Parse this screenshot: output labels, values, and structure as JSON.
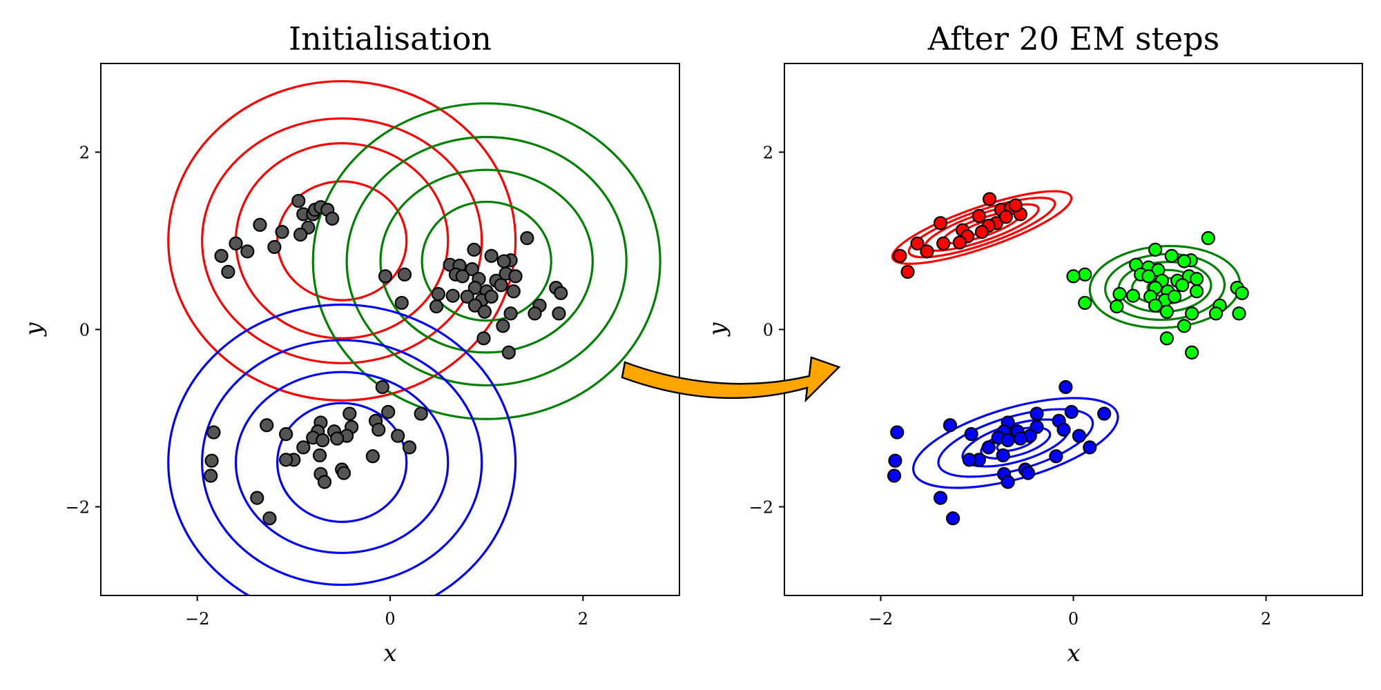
{
  "chart_data": [
    {
      "type": "scatter",
      "title": "Initialisation",
      "xlabel": "x",
      "ylabel": "y",
      "xlim": [
        -3,
        3
      ],
      "ylim": [
        -3,
        3
      ],
      "xticks": [
        "−2",
        "0",
        "2"
      ],
      "yticks": [
        "−2",
        "0",
        "2"
      ],
      "point_color": "#555555",
      "points": [
        [
          -0.95,
          1.45
        ],
        [
          -0.9,
          1.3
        ],
        [
          -0.85,
          1.15
        ],
        [
          -0.8,
          1.3
        ],
        [
          -0.78,
          1.35
        ],
        [
          -0.72,
          1.38
        ],
        [
          -0.65,
          1.35
        ],
        [
          -0.6,
          1.25
        ],
        [
          -0.93,
          1.07
        ],
        [
          -1.35,
          1.18
        ],
        [
          -1.12,
          1.1
        ],
        [
          -1.2,
          0.93
        ],
        [
          -1.6,
          0.97
        ],
        [
          -1.48,
          0.88
        ],
        [
          -1.75,
          0.83
        ],
        [
          -1.68,
          0.65
        ],
        [
          1.42,
          1.03
        ],
        [
          0.87,
          0.9
        ],
        [
          1.05,
          0.83
        ],
        [
          1.25,
          0.78
        ],
        [
          0.62,
          0.73
        ],
        [
          0.72,
          0.72
        ],
        [
          0.85,
          0.68
        ],
        [
          1.18,
          0.77
        ],
        [
          0.68,
          0.62
        ],
        [
          0.15,
          0.62
        ],
        [
          -0.05,
          0.6
        ],
        [
          0.75,
          0.6
        ],
        [
          0.92,
          0.57
        ],
        [
          1.1,
          0.55
        ],
        [
          1.2,
          0.63
        ],
        [
          1.3,
          0.6
        ],
        [
          0.88,
          0.47
        ],
        [
          1.0,
          0.43
        ],
        [
          1.15,
          0.5
        ],
        [
          1.28,
          0.43
        ],
        [
          1.72,
          0.47
        ],
        [
          1.77,
          0.41
        ],
        [
          0.5,
          0.4
        ],
        [
          0.65,
          0.38
        ],
        [
          0.8,
          0.37
        ],
        [
          0.95,
          0.33
        ],
        [
          1.05,
          0.37
        ],
        [
          0.12,
          0.3
        ],
        [
          0.48,
          0.26
        ],
        [
          0.88,
          0.27
        ],
        [
          0.98,
          0.2
        ],
        [
          1.25,
          0.18
        ],
        [
          1.55,
          0.27
        ],
        [
          1.75,
          0.18
        ],
        [
          1.5,
          0.18
        ],
        [
          1.17,
          0.04
        ],
        [
          0.97,
          -0.1
        ],
        [
          1.23,
          -0.26
        ],
        [
          -0.08,
          -0.65
        ],
        [
          -0.02,
          -0.93
        ],
        [
          0.32,
          -0.95
        ],
        [
          -0.42,
          -0.95
        ],
        [
          -0.15,
          -1.03
        ],
        [
          -0.12,
          -1.13
        ],
        [
          -0.4,
          -1.1
        ],
        [
          -0.45,
          -1.2
        ],
        [
          -0.58,
          -1.15
        ],
        [
          -0.72,
          -1.05
        ],
        [
          -0.75,
          -1.15
        ],
        [
          -0.8,
          -1.22
        ],
        [
          -0.7,
          -1.25
        ],
        [
          -0.55,
          -1.23
        ],
        [
          0.08,
          -1.2
        ],
        [
          0.2,
          -1.33
        ],
        [
          -1.28,
          -1.08
        ],
        [
          -1.08,
          -1.18
        ],
        [
          -0.9,
          -1.33
        ],
        [
          -0.73,
          -1.42
        ],
        [
          -0.18,
          -1.43
        ],
        [
          -1.0,
          -1.47
        ],
        [
          -1.08,
          -1.47
        ],
        [
          -0.5,
          -1.58
        ],
        [
          -0.48,
          -1.62
        ],
        [
          -0.72,
          -1.63
        ],
        [
          -0.68,
          -1.72
        ],
        [
          -1.38,
          -1.9
        ],
        [
          -1.25,
          -2.13
        ],
        [
          -1.83,
          -1.16
        ],
        [
          -1.85,
          -1.48
        ],
        [
          -1.86,
          -1.65
        ]
      ],
      "components": [
        {
          "color": "#ff0000",
          "mean": [
            -0.5,
            1.0
          ],
          "levels": [
            {
              "rx": 0.67,
              "ry": 0.67,
              "angle": 0
            },
            {
              "rx": 1.1,
              "ry": 1.1,
              "angle": 0
            },
            {
              "rx": 1.45,
              "ry": 1.38,
              "angle": 0
            },
            {
              "rx": 1.8,
              "ry": 1.8,
              "angle": 0
            }
          ]
        },
        {
          "color": "#008000",
          "mean": [
            1.0,
            0.77
          ],
          "levels": [
            {
              "rx": 0.67,
              "ry": 0.67,
              "angle": 0
            },
            {
              "rx": 1.1,
              "ry": 1.03,
              "angle": 0
            },
            {
              "rx": 1.45,
              "ry": 1.4,
              "angle": 0
            },
            {
              "rx": 1.8,
              "ry": 1.78,
              "angle": 0
            }
          ]
        },
        {
          "color": "#0000ff",
          "mean": [
            -0.5,
            -1.5
          ],
          "levels": [
            {
              "rx": 0.67,
              "ry": 0.67,
              "angle": 0
            },
            {
              "rx": 1.1,
              "ry": 1.02,
              "angle": 0
            },
            {
              "rx": 1.45,
              "ry": 1.38,
              "angle": 0
            },
            {
              "rx": 1.8,
              "ry": 1.78,
              "angle": 0
            }
          ]
        }
      ]
    },
    {
      "type": "scatter",
      "title": "After 20 EM steps",
      "xlabel": "x",
      "ylabel": "y",
      "xlim": [
        -3,
        3
      ],
      "ylim": [
        -3,
        3
      ],
      "xticks": [
        "−2",
        "0",
        "2"
      ],
      "yticks": [
        "−2",
        "0",
        "2"
      ],
      "groups": [
        {
          "color": "#ff0000",
          "points": [
            [
              -0.87,
              1.47
            ],
            [
              -0.98,
              1.28
            ],
            [
              -0.75,
              1.35
            ],
            [
              -0.65,
              1.37
            ],
            [
              -0.55,
              1.3
            ],
            [
              -0.6,
              1.4
            ],
            [
              -0.8,
              1.2
            ],
            [
              -0.88,
              1.17
            ],
            [
              -0.95,
              1.1
            ],
            [
              -1.15,
              1.12
            ],
            [
              -1.38,
              1.2
            ],
            [
              -1.1,
              1.05
            ],
            [
              -1.18,
              0.98
            ],
            [
              -1.35,
              0.97
            ],
            [
              -1.62,
              0.97
            ],
            [
              -1.52,
              0.88
            ],
            [
              -1.8,
              0.83
            ],
            [
              -1.72,
              0.65
            ],
            [
              -0.7,
              1.27
            ]
          ]
        },
        {
          "color": "#00ff00",
          "points": [
            [
              1.4,
              1.03
            ],
            [
              0.85,
              0.9
            ],
            [
              1.02,
              0.83
            ],
            [
              1.22,
              0.78
            ],
            [
              0.65,
              0.73
            ],
            [
              0.78,
              0.7
            ],
            [
              0.88,
              0.67
            ],
            [
              1.15,
              0.77
            ],
            [
              0.7,
              0.62
            ],
            [
              0.12,
              0.62
            ],
            [
              0.0,
              0.6
            ],
            [
              0.78,
              0.6
            ],
            [
              0.92,
              0.55
            ],
            [
              1.08,
              0.55
            ],
            [
              1.2,
              0.6
            ],
            [
              1.28,
              0.57
            ],
            [
              0.85,
              0.47
            ],
            [
              0.98,
              0.43
            ],
            [
              1.13,
              0.5
            ],
            [
              1.28,
              0.43
            ],
            [
              1.7,
              0.47
            ],
            [
              1.75,
              0.41
            ],
            [
              0.48,
              0.4
            ],
            [
              0.62,
              0.38
            ],
            [
              0.8,
              0.37
            ],
            [
              0.95,
              0.33
            ],
            [
              1.05,
              0.37
            ],
            [
              0.12,
              0.3
            ],
            [
              0.45,
              0.26
            ],
            [
              0.85,
              0.27
            ],
            [
              0.97,
              0.2
            ],
            [
              1.23,
              0.18
            ],
            [
              1.52,
              0.27
            ],
            [
              1.72,
              0.18
            ],
            [
              1.48,
              0.18
            ],
            [
              1.15,
              0.04
            ],
            [
              0.97,
              -0.1
            ],
            [
              1.23,
              -0.26
            ]
          ]
        },
        {
          "color": "#0000ff",
          "points": [
            [
              -0.08,
              -0.65
            ],
            [
              -0.02,
              -0.93
            ],
            [
              0.32,
              -0.95
            ],
            [
              -0.38,
              -0.95
            ],
            [
              -0.15,
              -1.03
            ],
            [
              -0.1,
              -1.13
            ],
            [
              -0.38,
              -1.1
            ],
            [
              -0.45,
              -1.2
            ],
            [
              -0.58,
              -1.15
            ],
            [
              -0.68,
              -1.05
            ],
            [
              -0.72,
              -1.15
            ],
            [
              -0.78,
              -1.22
            ],
            [
              -0.68,
              -1.25
            ],
            [
              -0.55,
              -1.23
            ],
            [
              0.06,
              -1.2
            ],
            [
              0.17,
              -1.33
            ],
            [
              -1.28,
              -1.08
            ],
            [
              -1.06,
              -1.18
            ],
            [
              -0.88,
              -1.33
            ],
            [
              -0.73,
              -1.42
            ],
            [
              -0.18,
              -1.43
            ],
            [
              -0.98,
              -1.47
            ],
            [
              -1.08,
              -1.47
            ],
            [
              -0.5,
              -1.58
            ],
            [
              -0.47,
              -1.62
            ],
            [
              -0.72,
              -1.63
            ],
            [
              -0.68,
              -1.72
            ],
            [
              -1.38,
              -1.9
            ],
            [
              -1.25,
              -2.13
            ],
            [
              -1.83,
              -1.16
            ],
            [
              -1.85,
              -1.48
            ],
            [
              -1.86,
              -1.65
            ]
          ]
        }
      ],
      "components": [
        {
          "color": "#ff0000",
          "mean": [
            -0.95,
            1.15
          ],
          "levels": [
            {
              "rx": 0.22,
              "ry": 0.055,
              "angle": 19
            },
            {
              "rx": 0.42,
              "ry": 0.1,
              "angle": 19
            },
            {
              "rx": 0.62,
              "ry": 0.15,
              "angle": 19
            },
            {
              "rx": 0.8,
              "ry": 0.19,
              "angle": 19
            },
            {
              "rx": 0.98,
              "ry": 0.23,
              "angle": 19
            }
          ]
        },
        {
          "color": "#008000",
          "mean": [
            0.95,
            0.48
          ],
          "levels": [
            {
              "rx": 0.18,
              "ry": 0.1,
              "angle": 3
            },
            {
              "rx": 0.34,
              "ry": 0.19,
              "angle": 3
            },
            {
              "rx": 0.48,
              "ry": 0.28,
              "angle": 3
            },
            {
              "rx": 0.62,
              "ry": 0.37,
              "angle": 3
            },
            {
              "rx": 0.78,
              "ry": 0.46,
              "angle": 3
            }
          ]
        },
        {
          "color": "#0000ff",
          "mean": [
            -0.6,
            -1.28
          ],
          "levels": [
            {
              "rx": 0.2,
              "ry": 0.07,
              "angle": 16
            },
            {
              "rx": 0.37,
              "ry": 0.14,
              "angle": 16
            },
            {
              "rx": 0.57,
              "ry": 0.21,
              "angle": 16
            },
            {
              "rx": 0.83,
              "ry": 0.3,
              "angle": 16
            },
            {
              "rx": 1.1,
              "ry": 0.4,
              "angle": 16
            }
          ]
        }
      ]
    }
  ],
  "arrow": {
    "fill": "#ffa500"
  }
}
